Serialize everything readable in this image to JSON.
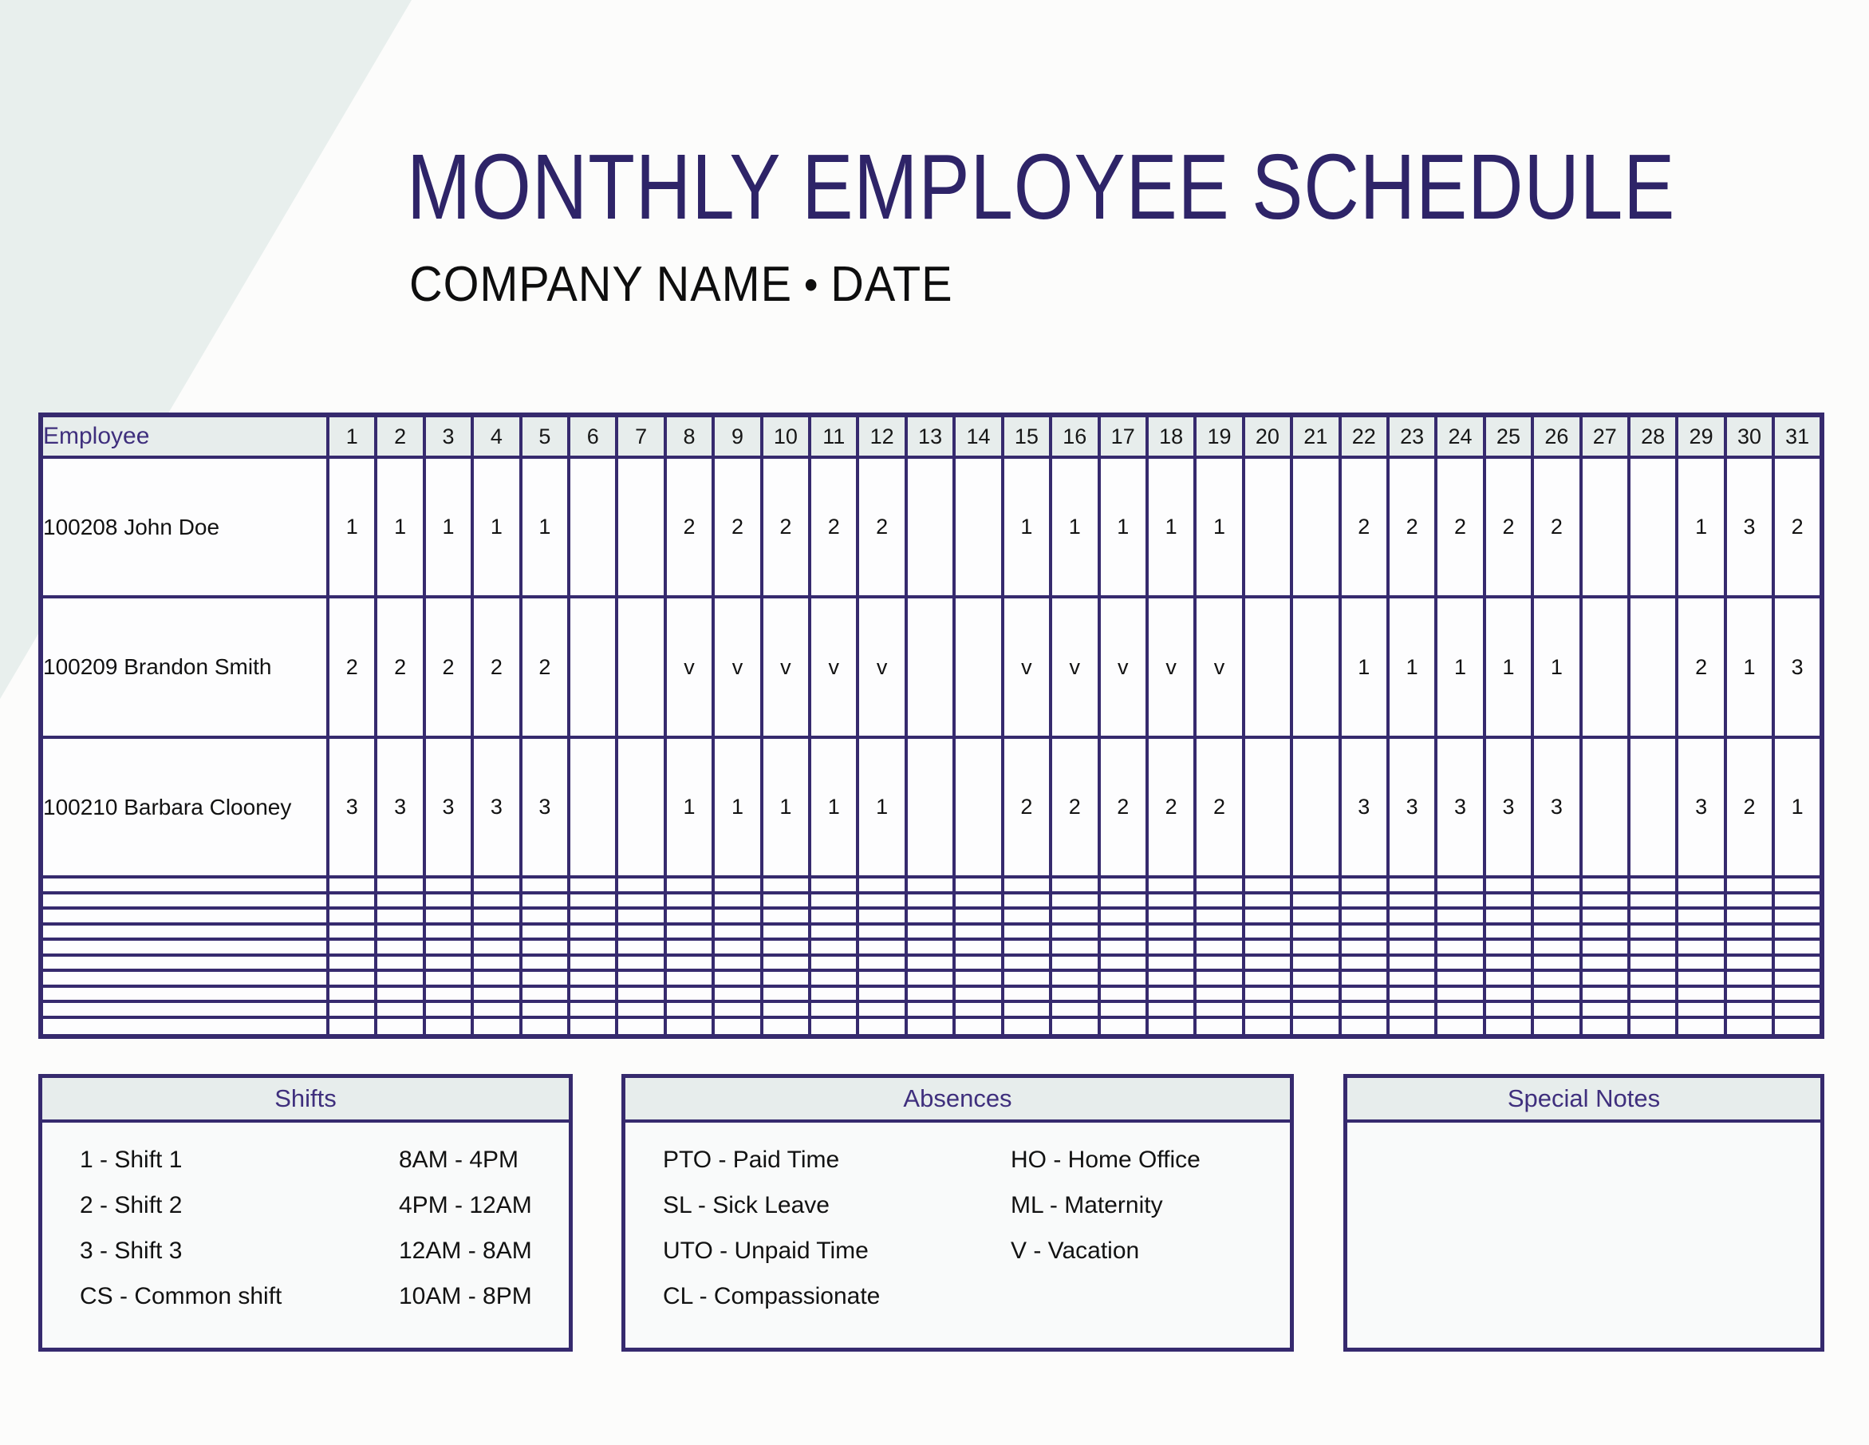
{
  "header": {
    "title": "MONTHLY EMPLOYEE SCHEDULE",
    "company_name": "COMPANY NAME",
    "separator": "•",
    "date": "DATE"
  },
  "schedule_table": {
    "employee_column_header": "Employee",
    "day_column_headers": [
      "1",
      "2",
      "3",
      "4",
      "5",
      "6",
      "7",
      "8",
      "9",
      "10",
      "11",
      "12",
      "13",
      "14",
      "15",
      "16",
      "17",
      "18",
      "19",
      "20",
      "21",
      "22",
      "23",
      "24",
      "25",
      "26",
      "27",
      "28",
      "29",
      "30",
      "31"
    ],
    "employees": [
      {
        "id_name": "100208 John Doe",
        "days": [
          "1",
          "1",
          "1",
          "1",
          "1",
          "",
          "",
          "2",
          "2",
          "2",
          "2",
          "2",
          "",
          "",
          "1",
          "1",
          "1",
          "1",
          "1",
          "",
          "",
          "2",
          "2",
          "2",
          "2",
          "2",
          "",
          "",
          "1",
          "3",
          "2"
        ]
      },
      {
        "id_name": "100209 Brandon Smith",
        "days": [
          "2",
          "2",
          "2",
          "2",
          "2",
          "",
          "",
          "v",
          "v",
          "v",
          "v",
          "v",
          "",
          "",
          "v",
          "v",
          "v",
          "v",
          "v",
          "",
          "",
          "1",
          "1",
          "1",
          "1",
          "1",
          "",
          "",
          "2",
          "1",
          "3"
        ]
      },
      {
        "id_name": "100210 Barbara Clooney",
        "days": [
          "3",
          "3",
          "3",
          "3",
          "3",
          "",
          "",
          "1",
          "1",
          "1",
          "1",
          "1",
          "",
          "",
          "2",
          "2",
          "2",
          "2",
          "2",
          "",
          "",
          "3",
          "3",
          "3",
          "3",
          "3",
          "",
          "",
          "3",
          "2",
          "1"
        ]
      }
    ],
    "empty_row_count": 10
  },
  "shifts_legend": {
    "title": "Shifts",
    "items": [
      {
        "code": "1 - Shift 1",
        "time": "8AM - 4PM"
      },
      {
        "code": "2 - Shift 2",
        "time": "4PM - 12AM"
      },
      {
        "code": "3 - Shift 3",
        "time": "12AM - 8AM"
      },
      {
        "code": "CS - Common shift",
        "time": "10AM - 8PM"
      }
    ]
  },
  "absences_legend": {
    "title": "Absences",
    "column_1": [
      "PTO - Paid Time",
      "SL - Sick Leave",
      "UTO - Unpaid Time",
      "CL - Compassionate"
    ],
    "column_2": [
      "HO - Home Office",
      "ML - Maternity",
      "V - Vacation"
    ]
  },
  "special_notes": {
    "title": "Special Notes",
    "content": ""
  },
  "colors": {
    "accent_border_purple": "#362a6e",
    "title_purple": "#2e2468",
    "header_text_purple": "#3f2f7d",
    "panel_header_bg": "#e7edec",
    "corner_shape_bg": "#e8efed",
    "page_bg": "#fcfcfb"
  }
}
